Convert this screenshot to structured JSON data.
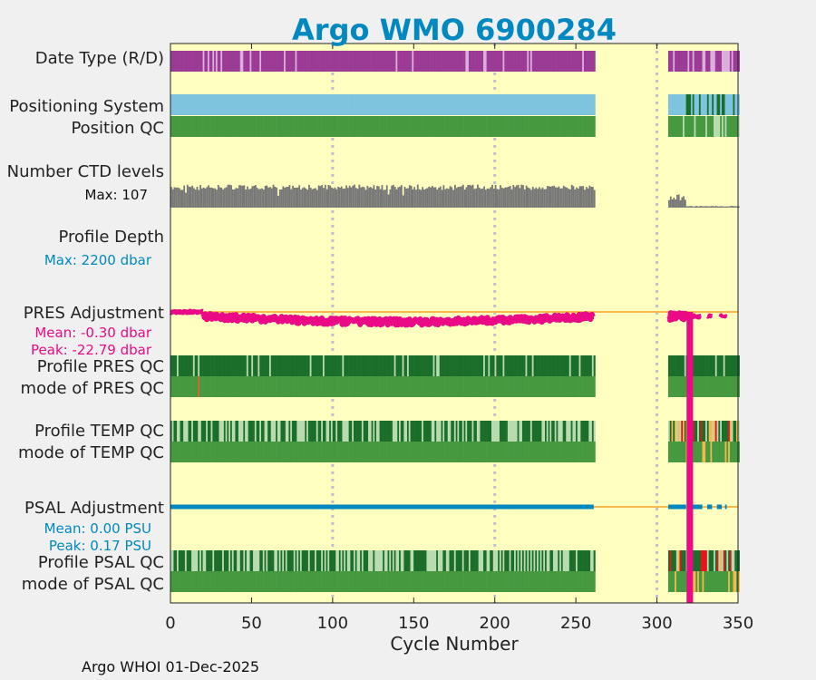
{
  "chart_data": {
    "type": "other",
    "title": "Argo WMO 6900284",
    "xlabel": "Cycle Number",
    "xlim": [
      0,
      350
    ],
    "xticks": [
      "0",
      "50",
      "100",
      "150",
      "200",
      "250",
      "300",
      "350"
    ],
    "gridlines_x": [
      100,
      200,
      300
    ],
    "cycle_segments": [
      [
        0,
        261
      ],
      [
        307,
        350
      ]
    ],
    "row_labels": {
      "date_type": "Date Type (R/D)",
      "positioning_system": "Positioning System",
      "position_qc": "Position QC",
      "ctd_levels": "Number CTD levels",
      "profile_depth": "Profile Depth",
      "pres_adjustment": "PRES Adjustment",
      "profile_pres_qc": "Profile PRES QC",
      "mode_pres_qc": "mode of PRES QC",
      "profile_temp_qc": "Profile TEMP QC",
      "mode_temp_qc": "mode of TEMP QC",
      "psal_adjustment": "PSAL Adjustment",
      "profile_psal_qc": "Profile PSAL QC",
      "mode_psal_qc": "mode of PSAL QC"
    },
    "annotations": {
      "ctd_max": "Max: 107",
      "depth_max": "Max: 2200 dbar",
      "pres_mean": "Mean: -0.30 dbar",
      "pres_peak": "Peak: -22.79 dbar",
      "psal_mean": "Mean: 0.00 PSU",
      "psal_peak": "Peak: 0.17 PSU"
    },
    "summary": {
      "ctd_levels_max": 107,
      "profile_depth_max_dbar": 2200,
      "pres_adjustment_mean_dbar": -0.3,
      "pres_adjustment_peak_dbar": -22.79,
      "pres_adjustment_peak_cycle": 320,
      "psal_adjustment_mean_psu": 0.0,
      "psal_adjustment_peak_psu": 0.17
    },
    "colors": {
      "background": "#ffffc0",
      "figure_bg": "#f0f0f0",
      "title": "#0088c0",
      "date_type": "#9b3b96",
      "date_type_light": "#dcaedb",
      "positioning": "#7ec4df",
      "qc_dark_green": "#1b6e2a",
      "qc_green": "#46993f",
      "qc_light": "#b8dcb0",
      "qc_red": "#e8131b",
      "qc_orange": "#f5b94b",
      "ctd": "#777777",
      "depth": "#3ba3d0",
      "pres": "#ea0a86",
      "psal": "#0089c0",
      "baseline": "#f5b94b",
      "grid": "#c0c0d0"
    }
  },
  "footer": "Argo WHOI 01-Dec-2025"
}
